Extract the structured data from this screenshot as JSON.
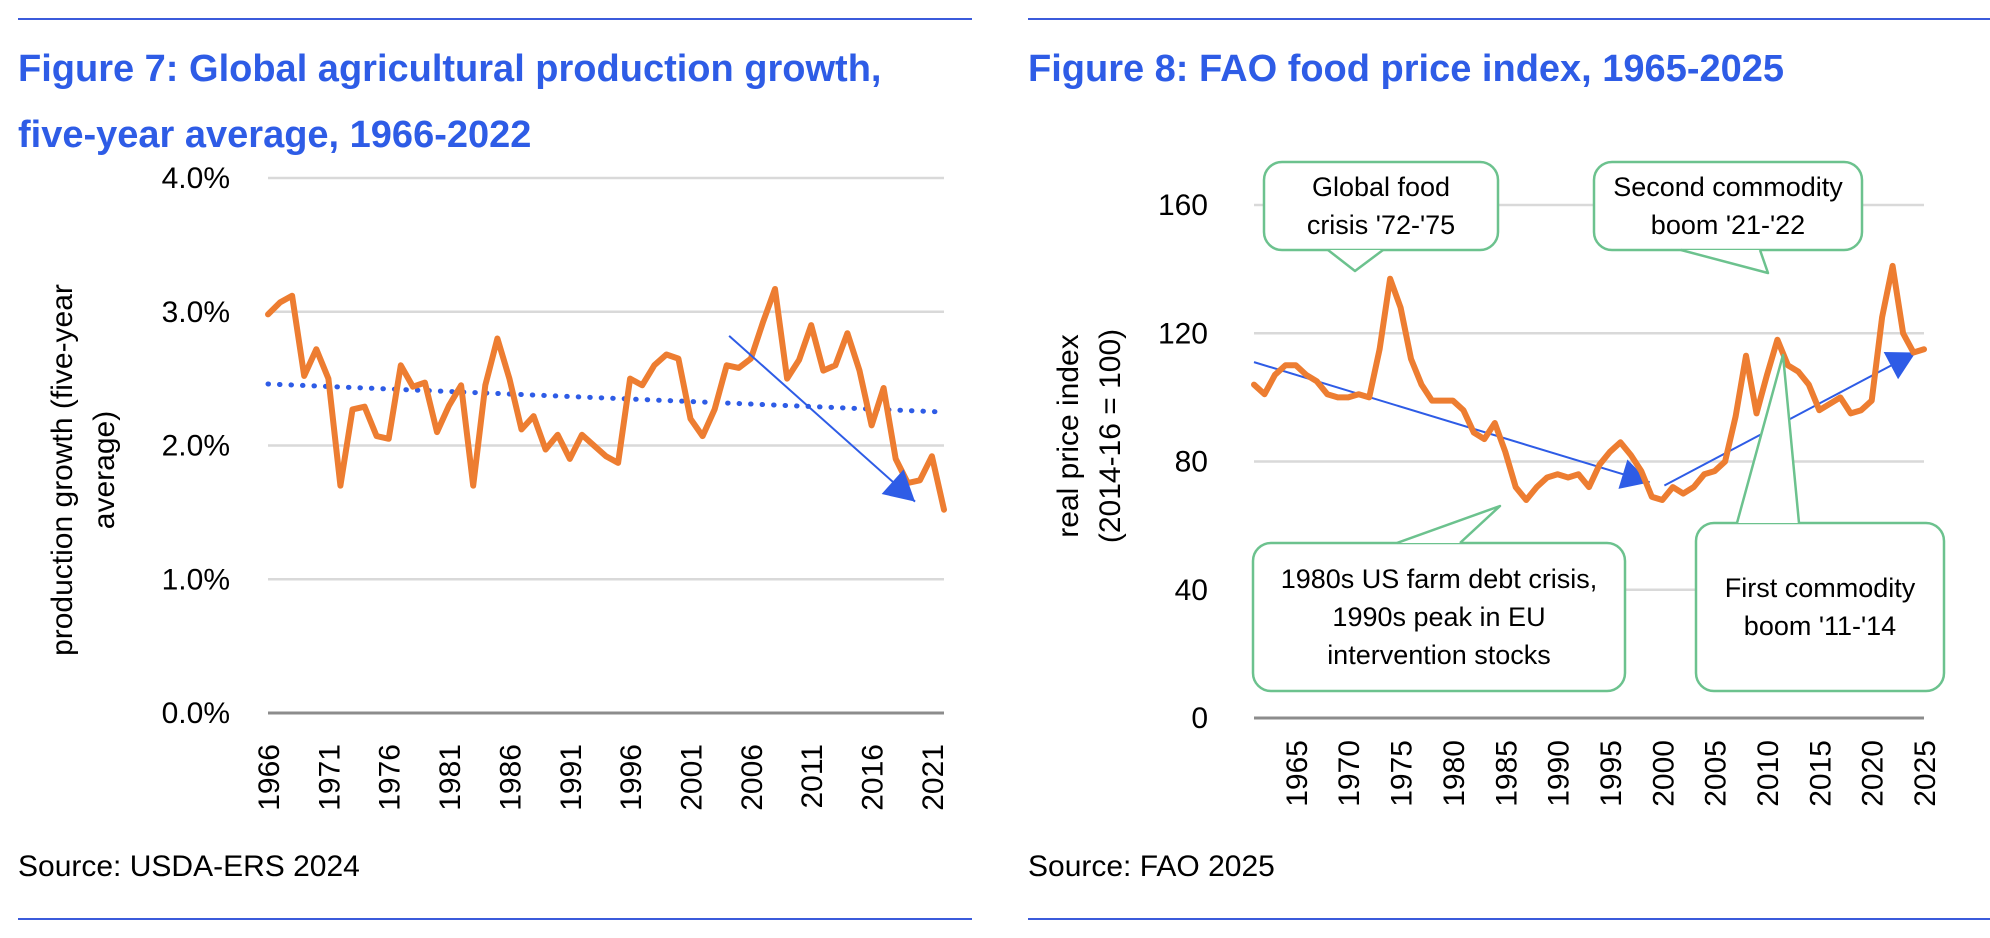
{
  "figure7": {
    "title_line1": "Figure 7: Global agricultural production growth,",
    "title_line2": "five-year average, 1966-2022",
    "source": "Source: USDA-ERS 2024",
    "chart_data": {
      "type": "line",
      "ylabel_line1": "production growth (five-year",
      "ylabel_line2": "average)",
      "ylim": [
        0,
        4
      ],
      "yticks": [
        0,
        1,
        2,
        3,
        4
      ],
      "ytick_labels": [
        "0.0%",
        "1.0%",
        "2.0%",
        "3.0%",
        "4.0%"
      ],
      "xticks": [
        1966,
        1971,
        1976,
        1981,
        1986,
        1991,
        1996,
        2001,
        2006,
        2011,
        2016,
        2021
      ],
      "xlim": [
        1966,
        2022
      ],
      "grid": true,
      "series": [
        {
          "color": "#ed7d31",
          "x": [
            1966,
            1967,
            1968,
            1969,
            1970,
            1971,
            1972,
            1973,
            1974,
            1975,
            1976,
            1977,
            1978,
            1979,
            1980,
            1981,
            1982,
            1983,
            1984,
            1985,
            1986,
            1987,
            1988,
            1989,
            1990,
            1991,
            1992,
            1993,
            1994,
            1995,
            1996,
            1997,
            1998,
            1999,
            2000,
            2001,
            2002,
            2003,
            2004,
            2005,
            2006,
            2007,
            2008,
            2009,
            2010,
            2011,
            2012,
            2013,
            2014,
            2015,
            2016,
            2017,
            2018,
            2019,
            2020,
            2021,
            2022
          ],
          "values": [
            2.98,
            3.07,
            3.12,
            2.52,
            2.72,
            2.5,
            1.7,
            2.27,
            2.29,
            2.07,
            2.05,
            2.6,
            2.44,
            2.47,
            2.1,
            2.3,
            2.45,
            1.7,
            2.45,
            2.8,
            2.5,
            2.12,
            2.22,
            1.97,
            2.08,
            1.9,
            2.08,
            2.0,
            1.92,
            1.87,
            2.5,
            2.45,
            2.6,
            2.68,
            2.65,
            2.2,
            2.07,
            2.27,
            2.6,
            2.58,
            2.65,
            2.92,
            3.17,
            2.5,
            2.64,
            2.9,
            2.56,
            2.6,
            2.84,
            2.56,
            2.15,
            2.43,
            1.9,
            1.72,
            1.74,
            1.92,
            1.52
          ]
        }
      ],
      "trendline": {
        "color": "#2e5ce6",
        "x": [
          1966,
          2022
        ],
        "values": [
          2.46,
          2.25
        ]
      },
      "arrow": {
        "color": "#2e5ce6",
        "from": [
          2004.2,
          2.82
        ],
        "to": [
          2019.6,
          1.58
        ]
      }
    }
  },
  "figure8": {
    "title": "Figure 8: FAO food price index, 1965-2025",
    "source": "Source: FAO 2025",
    "chart_data": {
      "type": "line",
      "ylabel_line1": "real price index",
      "ylabel_line2": "(2014-16 = 100)",
      "ylim": [
        0,
        160
      ],
      "yticks": [
        0,
        40,
        80,
        120,
        160
      ],
      "ytick_labels": [
        "0",
        "40",
        "80",
        "120",
        "160"
      ],
      "xticks": [
        1965,
        1970,
        1975,
        1980,
        1985,
        1990,
        1995,
        2000,
        2005,
        2010,
        2015,
        2020,
        2025
      ],
      "xlim": [
        1961,
        2025
      ],
      "grid": true,
      "series": [
        {
          "color": "#ed7d31",
          "x": [
            1961,
            1962,
            1963,
            1964,
            1965,
            1966,
            1967,
            1968,
            1969,
            1970,
            1971,
            1972,
            1973,
            1974,
            1975,
            1976,
            1977,
            1978,
            1979,
            1980,
            1981,
            1982,
            1983,
            1984,
            1985,
            1986,
            1987,
            1988,
            1989,
            1990,
            1991,
            1992,
            1993,
            1994,
            1995,
            1996,
            1997,
            1998,
            1999,
            2000,
            2001,
            2002,
            2003,
            2004,
            2005,
            2006,
            2007,
            2008,
            2009,
            2010,
            2011,
            2012,
            2013,
            2014,
            2015,
            2016,
            2017,
            2018,
            2019,
            2020,
            2021,
            2022,
            2023,
            2024,
            2025
          ],
          "values": [
            104,
            101,
            107,
            110,
            110,
            107,
            105,
            101,
            100,
            100,
            101,
            100,
            115,
            137,
            128,
            112,
            104,
            99,
            99,
            99,
            96,
            89,
            87,
            92,
            83,
            72,
            68,
            72,
            75,
            76,
            75,
            76,
            72,
            79,
            83,
            86,
            82,
            77,
            69,
            68,
            72,
            70,
            72,
            76,
            77,
            80,
            94,
            113,
            95,
            107,
            118,
            110,
            108,
            104,
            96,
            98,
            100,
            95,
            96,
            99,
            125,
            141,
            120,
            114,
            115
          ]
        }
      ],
      "trend_arrows": [
        {
          "color": "#2e5ce6",
          "from": [
            1961,
            111
          ],
          "to": [
            1998.8,
            73.5
          ]
        },
        {
          "color": "#2e5ce6",
          "from": [
            2000.2,
            72.5
          ],
          "to": [
            2024.2,
            114
          ]
        }
      ],
      "callouts": [
        {
          "lines": [
            "Global food",
            "crisis '72-'75"
          ],
          "target_year": 1974,
          "target_value": 137
        },
        {
          "lines": [
            "Second commodity",
            "boom '21-'22"
          ],
          "target_year": 2022,
          "target_value": 139
        },
        {
          "lines": [
            "1980s US farm debt crisis,",
            "1990s peak in  EU",
            "intervention stocks"
          ],
          "target_year": 1986,
          "target_value": 66
        },
        {
          "lines": [
            "First commodity",
            "boom '11-'14"
          ],
          "target_year": 2011,
          "target_value": 116
        }
      ]
    }
  },
  "colors": {
    "accent": "#2e5ce6",
    "series": "#ed7d31",
    "callout_border": "#6cc28e",
    "grid": "#d9d9d9"
  }
}
